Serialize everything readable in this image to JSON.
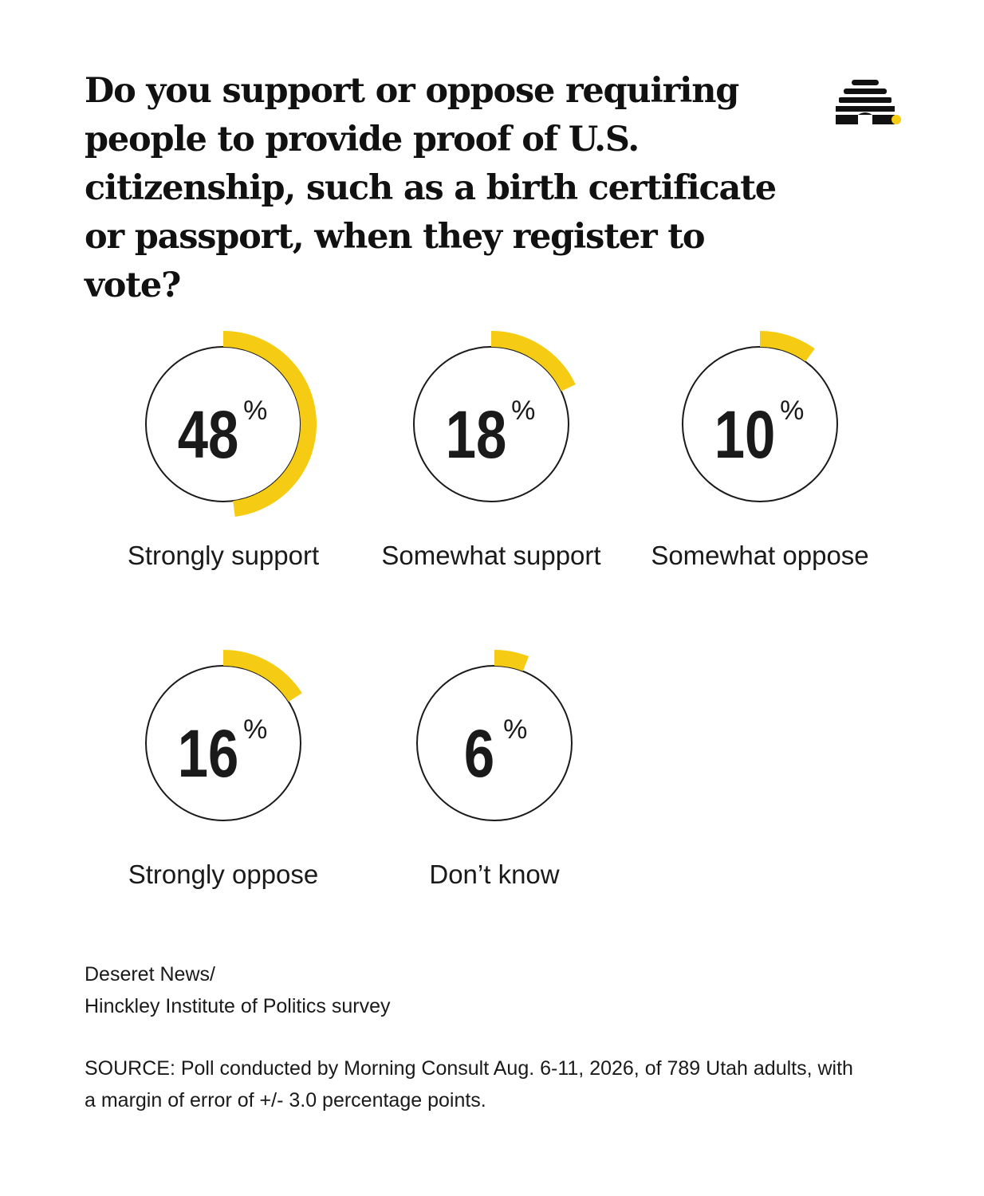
{
  "title": "Do you support or oppose requiring people to provide proof of U.S. citizenship, such as a birth certificate or passport, when they register to vote?",
  "logo": {
    "icon": "beehive-icon",
    "color": "#111111",
    "dot_color": "#F5CC13"
  },
  "chart_data": {
    "type": "donut-percent-rings",
    "unit": "%",
    "accent_color": "#F5CC13",
    "items": [
      {
        "label": "Strongly support",
        "value": 48
      },
      {
        "label": "Somewhat support",
        "value": 18
      },
      {
        "label": "Somewhat oppose",
        "value": 10
      },
      {
        "label": "Strongly oppose",
        "value": 16
      },
      {
        "label": "Don’t know",
        "value": 6
      }
    ]
  },
  "credit": {
    "line1": "Deseret News/",
    "line2": "Hinckley Institute of Politics survey"
  },
  "source": "SOURCE: Poll conducted by Morning Consult Aug. 6-11, 2026, of 789 Utah adults, with a margin of error of +/- 3.0 percentage points."
}
